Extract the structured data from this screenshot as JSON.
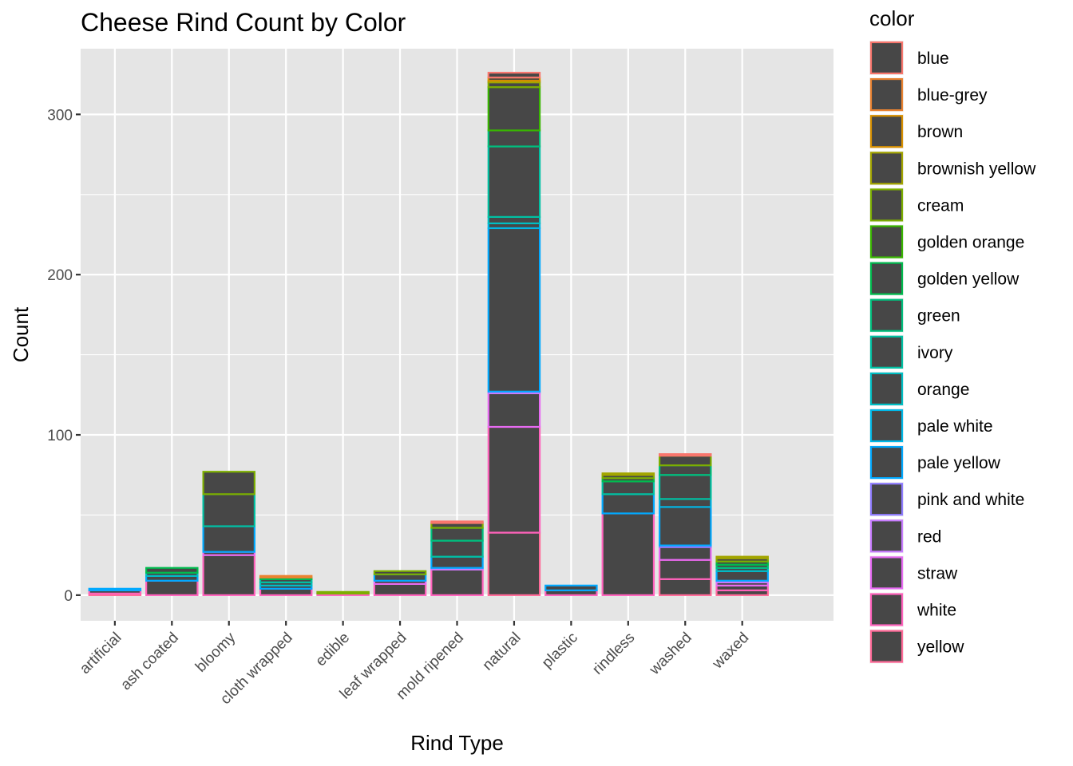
{
  "chart_data": {
    "type": "bar",
    "stacked": true,
    "title": "Cheese Rind Count by Color",
    "xlabel": "Rind Type",
    "ylabel": "Count",
    "ylim": [
      -16,
      341
    ],
    "yticks": [
      0,
      100,
      200,
      300
    ],
    "grid": true,
    "legend_position": "right",
    "bar_fill": "#474747",
    "panel_background": "#e5e5e5",
    "legend": {
      "title": "color",
      "entries": [
        {
          "name": "blue",
          "color": "#F8766D"
        },
        {
          "name": "blue-grey",
          "color": "#EA8331"
        },
        {
          "name": "brown",
          "color": "#D89000"
        },
        {
          "name": "brownish yellow",
          "color": "#A3A500"
        },
        {
          "name": "cream",
          "color": "#7CAE00"
        },
        {
          "name": "golden orange",
          "color": "#39B600"
        },
        {
          "name": "golden yellow",
          "color": "#00BB4E"
        },
        {
          "name": "green",
          "color": "#00BF7D"
        },
        {
          "name": "ivory",
          "color": "#00C1A3"
        },
        {
          "name": "orange",
          "color": "#00BFC4"
        },
        {
          "name": "pale white",
          "color": "#00B8E7"
        },
        {
          "name": "pale yellow",
          "color": "#00A9FF"
        },
        {
          "name": "pink and white",
          "color": "#8F7CFF"
        },
        {
          "name": "red",
          "color": "#C77CFF"
        },
        {
          "name": "straw",
          "color": "#E76BF3"
        },
        {
          "name": "white",
          "color": "#FF62BC"
        },
        {
          "name": "yellow",
          "color": "#FF6A98"
        }
      ]
    },
    "categories": [
      "artificial",
      "ash coated",
      "bloomy",
      "cloth wrapped",
      "edible",
      "leaf wrapped",
      "mold ripened",
      "natural",
      "plastic",
      "rindless",
      "washed",
      "waxed"
    ],
    "stacks": [
      [
        {
          "color": "yellow",
          "value": 1
        },
        {
          "color": "white",
          "value": 2
        },
        {
          "color": "pale yellow",
          "value": 1
        }
      ],
      [
        {
          "color": "white",
          "value": 9
        },
        {
          "color": "pale yellow",
          "value": 3
        },
        {
          "color": "orange",
          "value": 2
        },
        {
          "color": "golden yellow",
          "value": 3
        }
      ],
      [
        {
          "color": "white",
          "value": 25
        },
        {
          "color": "straw",
          "value": 2
        },
        {
          "color": "pale yellow",
          "value": 16
        },
        {
          "color": "ivory",
          "value": 20
        },
        {
          "color": "cream",
          "value": 14
        }
      ],
      [
        {
          "color": "white",
          "value": 4
        },
        {
          "color": "pale yellow",
          "value": 2
        },
        {
          "color": "orange",
          "value": 2
        },
        {
          "color": "ivory",
          "value": 2
        },
        {
          "color": "golden yellow",
          "value": 1
        },
        {
          "color": "blue-grey",
          "value": 1
        }
      ],
      [
        {
          "color": "white",
          "value": 1
        },
        {
          "color": "cream",
          "value": 1
        }
      ],
      [
        {
          "color": "white",
          "value": 7
        },
        {
          "color": "straw",
          "value": 2
        },
        {
          "color": "pale yellow",
          "value": 4
        },
        {
          "color": "cream",
          "value": 2
        }
      ],
      [
        {
          "color": "white",
          "value": 16
        },
        {
          "color": "red",
          "value": 1
        },
        {
          "color": "pale yellow",
          "value": 7
        },
        {
          "color": "ivory",
          "value": 10
        },
        {
          "color": "green",
          "value": 8
        },
        {
          "color": "cream",
          "value": 3
        },
        {
          "color": "blue",
          "value": 1
        }
      ],
      [
        {
          "color": "yellow",
          "value": 39
        },
        {
          "color": "white",
          "value": 66
        },
        {
          "color": "straw",
          "value": 21
        },
        {
          "color": "red",
          "value": 1
        },
        {
          "color": "pale yellow",
          "value": 102
        },
        {
          "color": "pale white",
          "value": 3
        },
        {
          "color": "orange",
          "value": 4
        },
        {
          "color": "ivory",
          "value": 44
        },
        {
          "color": "green",
          "value": 10
        },
        {
          "color": "golden orange",
          "value": 27
        },
        {
          "color": "cream",
          "value": 3
        },
        {
          "color": "brownish yellow",
          "value": 1
        },
        {
          "color": "brown",
          "value": 2
        },
        {
          "color": "blue",
          "value": 3
        }
      ],
      [
        {
          "color": "white",
          "value": 3
        },
        {
          "color": "pale yellow",
          "value": 3
        }
      ],
      [
        {
          "color": "white",
          "value": 51
        },
        {
          "color": "pale yellow",
          "value": 12
        },
        {
          "color": "ivory",
          "value": 8
        },
        {
          "color": "golden yellow",
          "value": 2
        },
        {
          "color": "cream",
          "value": 2
        },
        {
          "color": "brownish yellow",
          "value": 1
        }
      ],
      [
        {
          "color": "yellow",
          "value": 10
        },
        {
          "color": "white",
          "value": 12
        },
        {
          "color": "straw",
          "value": 8
        },
        {
          "color": "pink and white",
          "value": 1
        },
        {
          "color": "pale yellow",
          "value": 24
        },
        {
          "color": "pale white",
          "value": 5
        },
        {
          "color": "ivory",
          "value": 15
        },
        {
          "color": "green",
          "value": 6
        },
        {
          "color": "cream",
          "value": 6
        },
        {
          "color": "blue",
          "value": 1
        }
      ],
      [
        {
          "color": "yellow",
          "value": 3
        },
        {
          "color": "white",
          "value": 3
        },
        {
          "color": "straw",
          "value": 2
        },
        {
          "color": "red",
          "value": 1
        },
        {
          "color": "pale yellow",
          "value": 6
        },
        {
          "color": "orange",
          "value": 2
        },
        {
          "color": "green",
          "value": 2
        },
        {
          "color": "golden yellow",
          "value": 2
        },
        {
          "color": "cream",
          "value": 2
        },
        {
          "color": "brownish yellow",
          "value": 1
        }
      ]
    ]
  }
}
